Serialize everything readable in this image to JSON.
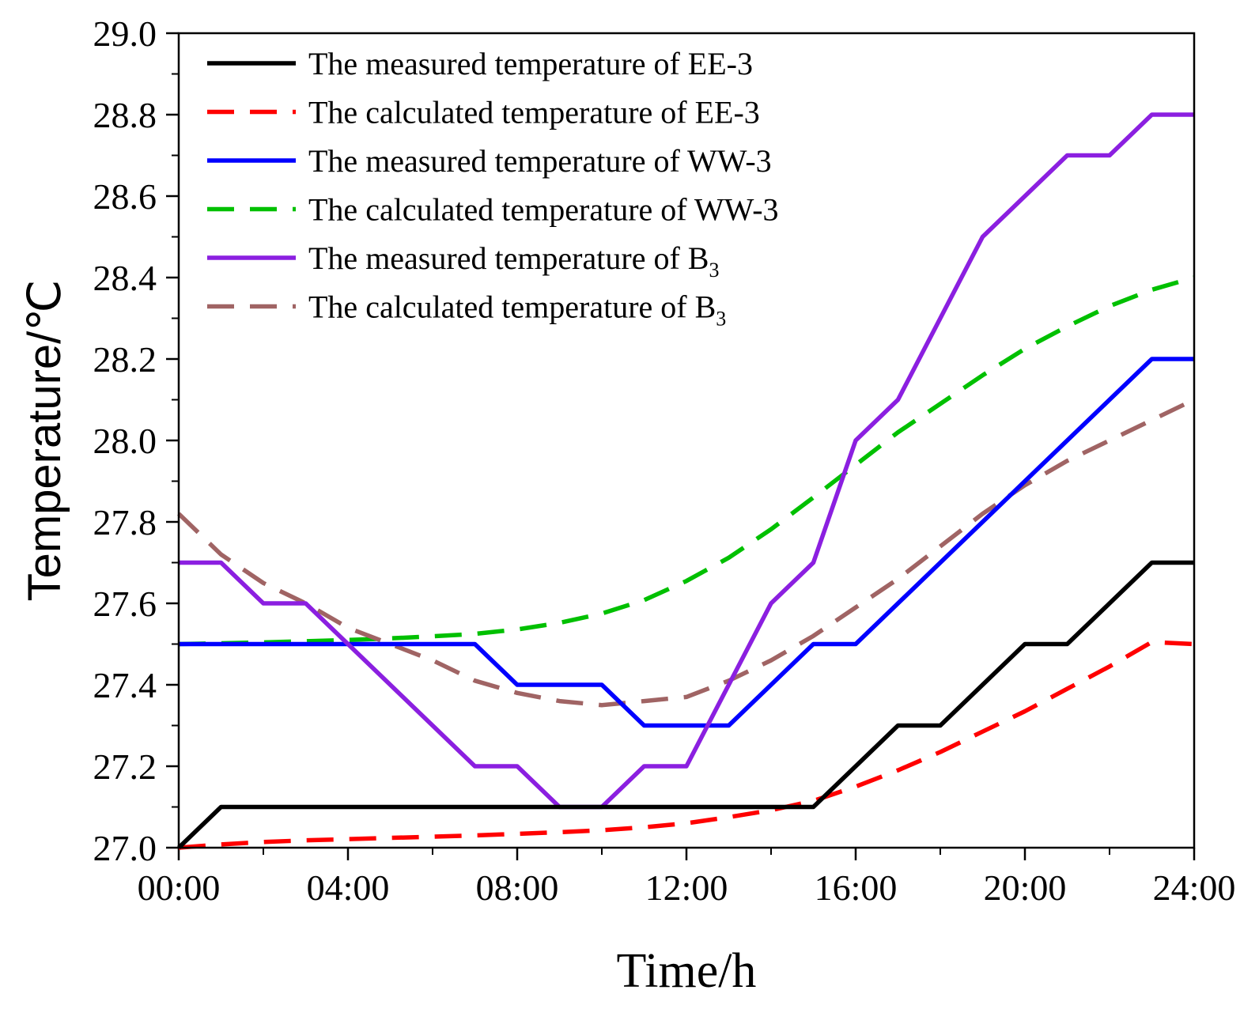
{
  "chart_data": {
    "type": "line",
    "title": "",
    "xlabel": "Time/h",
    "ylabel": "Temperature/℃",
    "xlim": [
      0,
      24
    ],
    "ylim": [
      27.0,
      29.0
    ],
    "x_ticks": [
      0,
      4,
      8,
      12,
      16,
      20,
      24
    ],
    "x_tick_labels": [
      "00:00",
      "04:00",
      "08:00",
      "12:00",
      "16:00",
      "20:00",
      "24:00"
    ],
    "y_ticks": [
      27.0,
      27.2,
      27.4,
      27.6,
      27.8,
      28.0,
      28.2,
      28.4,
      28.6,
      28.8,
      29.0
    ],
    "y_tick_labels": [
      "27.0",
      "27.2",
      "27.4",
      "27.6",
      "27.8",
      "28.0",
      "28.2",
      "28.4",
      "28.6",
      "28.8",
      "29.0"
    ],
    "legend_position": "top-left",
    "series": [
      {
        "name": "The measured temperature of EE-3",
        "legend_main": "The measured temperature of EE-3",
        "legend_sub": "",
        "color": "#000000",
        "dash": "solid",
        "x": [
          0,
          1,
          2,
          3,
          4,
          5,
          6,
          7,
          8,
          9,
          10,
          11,
          12,
          13,
          14,
          15,
          16,
          17,
          18,
          19,
          20,
          21,
          22,
          23,
          24
        ],
        "y": [
          27.0,
          27.1,
          27.1,
          27.1,
          27.1,
          27.1,
          27.1,
          27.1,
          27.1,
          27.1,
          27.1,
          27.1,
          27.1,
          27.1,
          27.1,
          27.1,
          27.2,
          27.3,
          27.3,
          27.4,
          27.5,
          27.5,
          27.6,
          27.7,
          27.7
        ]
      },
      {
        "name": "The calculated temperature of EE-3",
        "legend_main": "The calculated temperature of EE-3",
        "legend_sub": "",
        "color": "#ff0000",
        "dash": "dashed",
        "x": [
          0,
          1,
          2,
          3,
          4,
          5,
          6,
          7,
          8,
          9,
          10,
          11,
          12,
          13,
          14,
          15,
          16,
          17,
          18,
          19,
          20,
          21,
          22,
          23,
          24
        ],
        "y": [
          27.0,
          27.008,
          27.014,
          27.018,
          27.021,
          27.024,
          27.027,
          27.03,
          27.034,
          27.038,
          27.043,
          27.05,
          27.06,
          27.075,
          27.092,
          27.115,
          27.15,
          27.19,
          27.235,
          27.285,
          27.335,
          27.39,
          27.445,
          27.505,
          27.5
        ]
      },
      {
        "name": "The measured temperature of WW-3",
        "legend_main": "The measured temperature of WW-3",
        "legend_sub": "",
        "color": "#0000ff",
        "dash": "solid",
        "x": [
          0,
          1,
          2,
          3,
          4,
          5,
          6,
          7,
          8,
          9,
          10,
          11,
          12,
          13,
          14,
          15,
          16,
          17,
          18,
          19,
          20,
          21,
          22,
          23,
          24
        ],
        "y": [
          27.5,
          27.5,
          27.5,
          27.5,
          27.5,
          27.5,
          27.5,
          27.5,
          27.4,
          27.4,
          27.4,
          27.3,
          27.3,
          27.3,
          27.4,
          27.5,
          27.5,
          27.6,
          27.7,
          27.8,
          27.9,
          28.0,
          28.1,
          28.2,
          28.2
        ]
      },
      {
        "name": "The calculated temperature of WW-3",
        "legend_main": "The calculated temperature of WW-3",
        "legend_sub": "",
        "color": "#00c000",
        "dash": "dashed",
        "x": [
          0,
          1,
          2,
          3,
          4,
          5,
          6,
          7,
          8,
          9,
          10,
          11,
          12,
          13,
          14,
          15,
          16,
          17,
          18,
          19,
          20,
          21,
          22,
          23,
          24
        ],
        "y": [
          27.5,
          27.502,
          27.504,
          27.507,
          27.51,
          27.514,
          27.519,
          27.525,
          27.536,
          27.552,
          27.575,
          27.608,
          27.655,
          27.712,
          27.782,
          27.86,
          27.94,
          28.02,
          28.09,
          28.16,
          28.225,
          28.28,
          28.33,
          28.37,
          28.4
        ]
      },
      {
        "name": "The measured temperature of B3",
        "legend_main": "The measured temperature of B",
        "legend_sub": "3",
        "color": "#8b1fe0",
        "dash": "solid",
        "x": [
          0,
          1,
          2,
          3,
          4,
          5,
          6,
          7,
          8,
          9,
          10,
          11,
          12,
          13,
          14,
          15,
          16,
          17,
          18,
          19,
          20,
          21,
          22,
          23,
          24
        ],
        "y": [
          27.7,
          27.7,
          27.6,
          27.6,
          27.5,
          27.4,
          27.3,
          27.2,
          27.2,
          27.1,
          27.1,
          27.2,
          27.2,
          27.4,
          27.6,
          27.7,
          28.0,
          28.1,
          28.3,
          28.5,
          28.6,
          28.7,
          28.7,
          28.8,
          28.8
        ]
      },
      {
        "name": "The calculated temperature of B3",
        "legend_main": "The calculated temperature of B",
        "legend_sub": "3",
        "color": "#a06464",
        "dash": "dashed",
        "x": [
          0,
          1,
          2,
          3,
          4,
          5,
          6,
          7,
          8,
          9,
          10,
          11,
          12,
          13,
          14,
          15,
          16,
          17,
          18,
          19,
          20,
          21,
          22,
          23,
          24
        ],
        "y": [
          27.82,
          27.72,
          27.65,
          27.6,
          27.54,
          27.5,
          27.46,
          27.41,
          27.38,
          27.36,
          27.35,
          27.36,
          27.37,
          27.41,
          27.46,
          27.52,
          27.59,
          27.66,
          27.74,
          27.82,
          27.89,
          27.95,
          28.0,
          28.05,
          28.1
        ]
      }
    ]
  }
}
